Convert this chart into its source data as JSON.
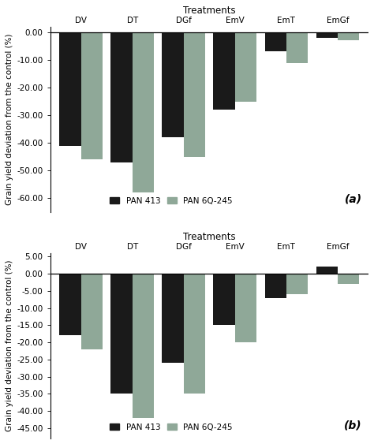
{
  "categories": [
    "DV",
    "DT",
    "DGf",
    "EmV",
    "EmT",
    "EmGf"
  ],
  "chart_a": {
    "title": "Treatments",
    "ylabel": "Grain yield deviation from the control (%)",
    "pan413": [
      -41.0,
      -47.0,
      -38.0,
      -28.0,
      -7.0,
      -2.0
    ],
    "pan6q": [
      -46.0,
      -58.0,
      -45.0,
      -25.0,
      -11.0,
      -3.0
    ],
    "ylim": [
      -65,
      2
    ],
    "yticks": [
      0,
      -10,
      -20,
      -30,
      -40,
      -50,
      -60
    ],
    "ytick_labels": [
      "0.00",
      "-10.00",
      "-20.00",
      "-30.00",
      "-40.00",
      "-50.00",
      "-60.00"
    ],
    "label": "(a)"
  },
  "chart_b": {
    "title": "Treatments",
    "ylabel": "Grain yield deviation from the control (%)",
    "pan413": [
      -18.0,
      -35.0,
      -26.0,
      -15.0,
      -7.0,
      2.0
    ],
    "pan6q": [
      -22.0,
      -42.0,
      -35.0,
      -20.0,
      -6.0,
      -3.0
    ],
    "ylim": [
      -48,
      6
    ],
    "yticks": [
      5,
      0,
      -5,
      -10,
      -15,
      -20,
      -25,
      -30,
      -35,
      -40,
      -45
    ],
    "ytick_labels": [
      "5.00",
      "0.00",
      "-5.00",
      "-10.00",
      "-15.00",
      "-20.00",
      "-25.00",
      "-30.00",
      "-35.00",
      "-40.00",
      "-45.00"
    ],
    "label": "(b)"
  },
  "color_pan413": "#1a1a1a",
  "color_pan6q": "#8fa898",
  "legend_pan413": "PAN 413",
  "legend_pan6q": "PAN 6Q-245",
  "bar_width": 0.42,
  "bg_color": "#ffffff",
  "font_size": 7.5,
  "title_fontsize": 8.5
}
